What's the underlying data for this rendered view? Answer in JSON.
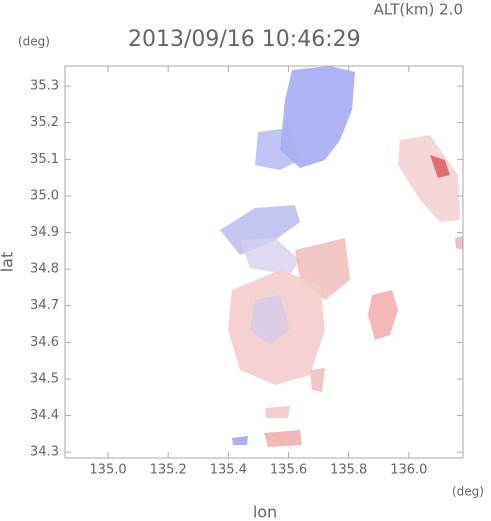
{
  "chart_data": {
    "type": "map",
    "subtitle": "ALT(km)  2.0",
    "title": "2013/09/16 10:46:29",
    "xlabel": "lon",
    "ylabel": "lat",
    "xunit": "(deg)",
    "yunit": "(deg)",
    "xlim": [
      134.857,
      136.18
    ],
    "ylim": [
      34.284,
      35.355
    ],
    "xticks": [
      {
        "value": 135.0,
        "label": "135.0"
      },
      135.2,
      135.4,
      135.6,
      135.8,
      {
        "value": 136.0,
        "label": "136.0"
      }
    ],
    "yticks": [
      34.3,
      34.4,
      34.5,
      34.6,
      34.7,
      34.8,
      34.9,
      {
        "value": 35.0,
        "label": "35.0"
      },
      35.1,
      35.2,
      35.3
    ]
  }
}
